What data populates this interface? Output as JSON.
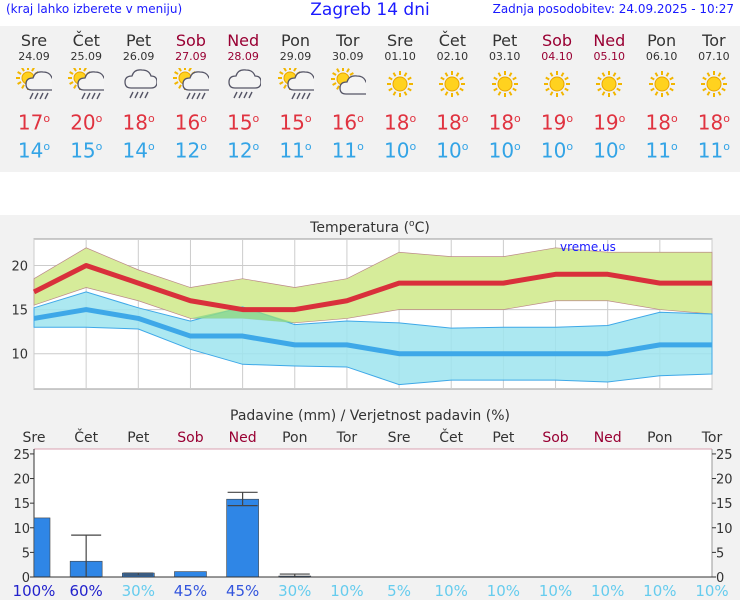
{
  "header": {
    "menu_hint": "(kraj lahko izberete v meniju)",
    "title": "Zagreb 14 dni",
    "last_update": "Zadnja posodobitev: 24.09.2025 - 10:27"
  },
  "days": [
    {
      "name": "Sre",
      "date": "24.09",
      "weekend": false,
      "icon": "partly-cloudy-rain-icon",
      "tmax": "17",
      "tmin": "14"
    },
    {
      "name": "Čet",
      "date": "25.09",
      "weekend": false,
      "icon": "partly-cloudy-rain-icon",
      "tmax": "20",
      "tmin": "15"
    },
    {
      "name": "Pet",
      "date": "26.09",
      "weekend": false,
      "icon": "cloud-rain-icon",
      "tmax": "18",
      "tmin": "14"
    },
    {
      "name": "Sob",
      "date": "27.09",
      "weekend": true,
      "icon": "partly-cloudy-rain-icon",
      "tmax": "16",
      "tmin": "12"
    },
    {
      "name": "Ned",
      "date": "28.09",
      "weekend": true,
      "icon": "cloud-rain-icon",
      "tmax": "15",
      "tmin": "12"
    },
    {
      "name": "Pon",
      "date": "29.09",
      "weekend": false,
      "icon": "partly-cloudy-rain-icon",
      "tmax": "15",
      "tmin": "11"
    },
    {
      "name": "Tor",
      "date": "30.09",
      "weekend": false,
      "icon": "partly-cloudy-icon",
      "tmax": "16",
      "tmin": "11"
    },
    {
      "name": "Sre",
      "date": "01.10",
      "weekend": false,
      "icon": "sun-icon",
      "tmax": "18",
      "tmin": "10"
    },
    {
      "name": "Čet",
      "date": "02.10",
      "weekend": false,
      "icon": "sun-icon",
      "tmax": "18",
      "tmin": "10"
    },
    {
      "name": "Pet",
      "date": "03.10",
      "weekend": false,
      "icon": "sun-icon",
      "tmax": "18",
      "tmin": "10"
    },
    {
      "name": "Sob",
      "date": "04.10",
      "weekend": true,
      "icon": "sun-icon",
      "tmax": "19",
      "tmin": "10"
    },
    {
      "name": "Ned",
      "date": "05.10",
      "weekend": true,
      "icon": "sun-icon",
      "tmax": "19",
      "tmin": "10"
    },
    {
      "name": "Pon",
      "date": "06.10",
      "weekend": false,
      "icon": "sun-icon",
      "tmax": "18",
      "tmin": "11"
    },
    {
      "name": "Tor",
      "date": "07.10",
      "weekend": false,
      "icon": "sun-icon",
      "tmax": "18",
      "tmin": "11"
    }
  ],
  "colors": {
    "max_line": "#d9303b",
    "max_band": "#d6ec9a",
    "min_line": "#3ea8e8",
    "min_band": "#9ee4ef",
    "overlap": "#8fd98a",
    "bar": "#2f86e6",
    "weekend": "#990033",
    "prob_high": "#2222cc",
    "prob_low": "#66ccee"
  },
  "chart_data": [
    {
      "type": "line",
      "title": "Temperatura (°C)",
      "title_main": "Temperatura (",
      "title_sup": "o",
      "title_end": "C)",
      "watermark": "vreme.us",
      "ylim": [
        6,
        23
      ],
      "yticks": [
        10,
        15,
        20
      ],
      "grid": true,
      "x": [
        "24.09",
        "25.09",
        "26.09",
        "27.09",
        "28.09",
        "29.09",
        "30.09",
        "01.10",
        "02.10",
        "03.10",
        "04.10",
        "05.10",
        "06.10",
        "07.10"
      ],
      "series": [
        {
          "name": "max",
          "values": [
            17,
            20,
            18,
            16,
            15,
            15,
            16,
            18,
            18,
            18,
            19,
            19,
            18,
            18
          ],
          "range_low": [
            15.5,
            17.5,
            16,
            14,
            14,
            13.5,
            14,
            15,
            15,
            15,
            16,
            16,
            15,
            14.5
          ],
          "range_high": [
            18.5,
            22,
            19.5,
            17.5,
            18.5,
            17.5,
            18.5,
            21.5,
            21,
            21,
            22,
            21.5,
            21.5,
            21.5
          ]
        },
        {
          "name": "min",
          "values": [
            14,
            15,
            14,
            12,
            12,
            11,
            11,
            10,
            10,
            10,
            10,
            10,
            11,
            11
          ],
          "range_low": [
            13,
            13,
            12.8,
            10.5,
            8.8,
            8.6,
            8.5,
            6.5,
            7,
            7,
            7,
            6.8,
            7.5,
            7.7
          ],
          "range_high": [
            15.2,
            17,
            15.2,
            13.7,
            15.3,
            13.3,
            13.7,
            13.5,
            12.9,
            13,
            13,
            13.2,
            14.7,
            14.5
          ]
        }
      ]
    },
    {
      "type": "bar",
      "title": "Padavine (mm) / Verjetnost padavin (%)",
      "ylim": [
        0,
        26
      ],
      "yticks": [
        0,
        5,
        10,
        15,
        20,
        25
      ],
      "categories": [
        "Sre",
        "Čet",
        "Pet",
        "Sob",
        "Ned",
        "Pon",
        "Tor",
        "Sre",
        "Čet",
        "Pet",
        "Sob",
        "Ned",
        "Pon",
        "Tor"
      ],
      "weekend": [
        false,
        false,
        false,
        true,
        true,
        false,
        false,
        false,
        false,
        false,
        true,
        true,
        false,
        false
      ],
      "values": [
        12,
        3.2,
        0.8,
        1.1,
        15.8,
        0.2,
        0,
        0,
        0,
        0,
        0,
        0,
        0,
        0
      ],
      "error_low": [
        null,
        0,
        0.4,
        null,
        14.5,
        0,
        null,
        null,
        null,
        null,
        null,
        null,
        null,
        null
      ],
      "error_high": [
        null,
        8.5,
        0.8,
        null,
        17.2,
        0.6,
        null,
        null,
        null,
        null,
        null,
        null,
        null,
        null
      ],
      "probability": [
        "100%",
        "60%",
        "30%",
        "45%",
        "45%",
        "30%",
        "10%",
        "5%",
        "10%",
        "10%",
        "10%",
        "10%",
        "10%",
        "10%"
      ],
      "prob_level": [
        100,
        60,
        30,
        45,
        45,
        30,
        10,
        5,
        10,
        10,
        10,
        10,
        10,
        10
      ]
    }
  ]
}
